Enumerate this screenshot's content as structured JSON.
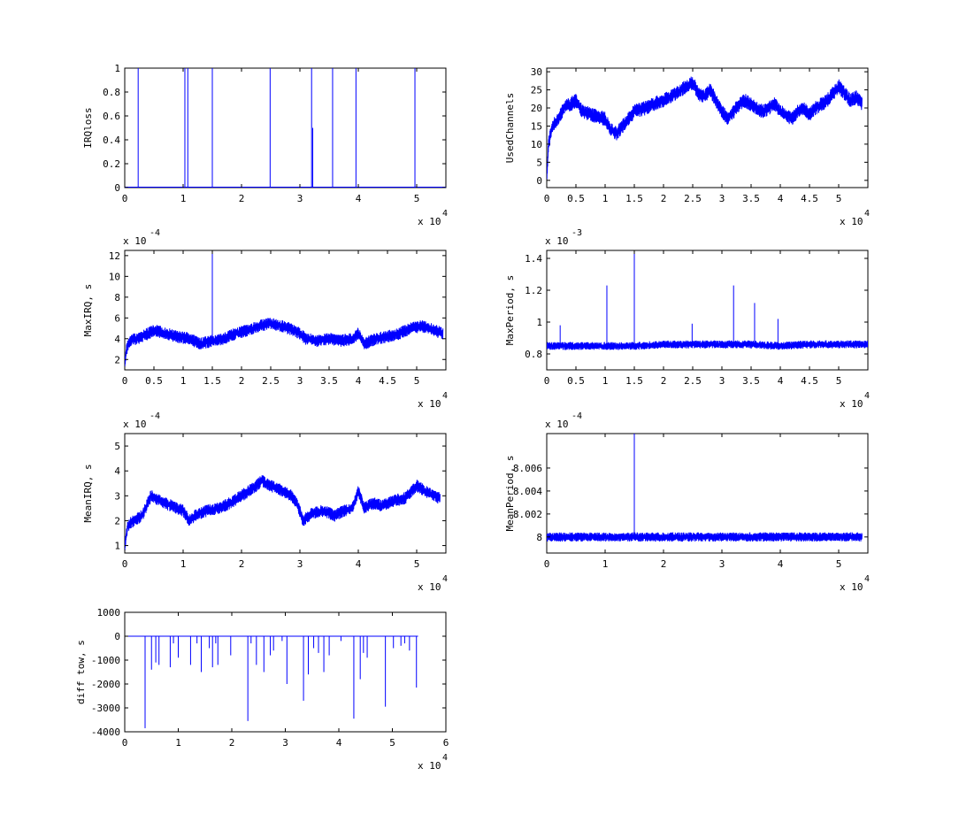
{
  "chart_data": [
    {
      "type": "line",
      "ylabel": "IRQloss",
      "xlim": [
        0,
        55000
      ],
      "ylim": [
        0,
        1
      ],
      "x_ticks": [
        0,
        10000,
        20000,
        30000,
        40000,
        50000
      ],
      "x_tick_labels": [
        "0",
        "1",
        "2",
        "3",
        "4",
        "5"
      ],
      "y_ticks": [
        0,
        0.2,
        0.4,
        0.6,
        0.8,
        1
      ],
      "y_tick_labels": [
        "0",
        "0.2",
        "0.4",
        "0.6",
        "0.8",
        "1"
      ],
      "x_multiplier": {
        "base": "x 10",
        "exp": "4"
      },
      "color": "#0000ff",
      "spikes": [
        {
          "x": 2300,
          "y": 1
        },
        {
          "x": 10300,
          "y": 1
        },
        {
          "x": 10800,
          "y": 1
        },
        {
          "x": 15000,
          "y": 1
        },
        {
          "x": 24900,
          "y": 1
        },
        {
          "x": 32000,
          "y": 1
        },
        {
          "x": 32200,
          "y": 0.5
        },
        {
          "x": 35600,
          "y": 1
        },
        {
          "x": 39600,
          "y": 1
        },
        {
          "x": 49700,
          "y": 1
        }
      ]
    },
    {
      "type": "line",
      "ylabel": "UsedChannels",
      "xlim": [
        0,
        55000
      ],
      "ylim": [
        -2,
        31
      ],
      "x_ticks": [
        0,
        5000,
        10000,
        15000,
        20000,
        25000,
        30000,
        35000,
        40000,
        45000,
        50000
      ],
      "x_tick_labels": [
        "0",
        "0.5",
        "1",
        "1.5",
        "2",
        "2.5",
        "3",
        "3.5",
        "4",
        "4.5",
        "5"
      ],
      "y_ticks": [
        0,
        5,
        10,
        15,
        20,
        25,
        30
      ],
      "y_tick_labels": [
        "0",
        "5",
        "10",
        "15",
        "20",
        "25",
        "30"
      ],
      "x_multiplier": {
        "base": "x 10",
        "exp": "4"
      },
      "color": "#0000ff",
      "x": [
        0,
        300,
        1000,
        2000,
        3000,
        4000,
        5000,
        6000,
        8000,
        10000,
        11000,
        12000,
        13000,
        15000,
        17000,
        18000,
        20000,
        21000,
        22000,
        23000,
        24000,
        25000,
        26000,
        27000,
        28000,
        29000,
        30000,
        31000,
        32000,
        33000,
        34000,
        35000,
        36000,
        37000,
        38000,
        39000,
        40000,
        41000,
        42000,
        43000,
        44000,
        45000,
        46000,
        47000,
        48000,
        49000,
        50000,
        51000,
        52000,
        53000,
        54000
      ],
      "y": [
        0,
        10,
        15,
        17,
        20,
        21,
        22,
        19,
        18,
        17,
        14,
        13,
        15,
        19,
        20,
        21,
        22,
        23,
        24,
        25,
        26,
        27,
        24,
        23,
        25,
        22,
        19,
        17,
        19,
        21,
        22,
        21,
        20,
        19,
        20,
        21,
        19,
        18,
        17,
        19,
        20,
        18,
        20,
        21,
        22,
        24,
        26,
        24,
        22,
        23,
        21
      ],
      "noise_band": 4
    },
    {
      "type": "line",
      "ylabel": "MaxIRQ, s",
      "xlim": [
        0,
        55000
      ],
      "ylim": [
        0.0001,
        0.00125
      ],
      "x_ticks": [
        0,
        5000,
        10000,
        15000,
        20000,
        25000,
        30000,
        35000,
        40000,
        45000,
        50000
      ],
      "x_tick_labels": [
        "0",
        "0.5",
        "1",
        "1.5",
        "2",
        "2.5",
        "3",
        "3.5",
        "4",
        "4.5",
        "5"
      ],
      "y_ticks": [
        0.0002,
        0.0004,
        0.0006,
        0.0008,
        0.001,
        0.0012
      ],
      "y_tick_labels": [
        "2",
        "4",
        "6",
        "8",
        "10",
        "12"
      ],
      "y_multiplier": {
        "base": "x 10",
        "exp": "-4"
      },
      "x_multiplier": {
        "base": "x 10",
        "exp": "4"
      },
      "color": "#0000ff",
      "x": [
        0,
        300,
        1000,
        3000,
        5000,
        7000,
        9000,
        11000,
        13000,
        15000,
        17000,
        19000,
        21000,
        23000,
        25000,
        27000,
        29000,
        30000,
        31000,
        33000,
        35000,
        37000,
        39000,
        40000,
        41000,
        43000,
        45000,
        47000,
        49000,
        51000,
        53000,
        54500
      ],
      "y": [
        0.00015,
        0.0003,
        0.00038,
        0.00042,
        0.00048,
        0.00045,
        0.00042,
        0.0004,
        0.00035,
        0.00038,
        0.0004,
        0.00045,
        0.00048,
        0.00052,
        0.00055,
        0.00052,
        0.00048,
        0.00045,
        0.0004,
        0.00038,
        0.0004,
        0.00038,
        0.0004,
        0.00045,
        0.00035,
        0.0004,
        0.00042,
        0.00045,
        0.0005,
        0.00052,
        0.00048,
        0.00045
      ],
      "noise_band": 0.00012,
      "spikes": [
        {
          "x": 15000,
          "y": 0.00125
        }
      ]
    },
    {
      "type": "line",
      "ylabel": "MaxPeriod, s",
      "xlim": [
        0,
        55000
      ],
      "ylim": [
        0.0007,
        0.00145
      ],
      "x_ticks": [
        0,
        5000,
        10000,
        15000,
        20000,
        25000,
        30000,
        35000,
        40000,
        45000,
        50000
      ],
      "x_tick_labels": [
        "0",
        "0.5",
        "1",
        "1.5",
        "2",
        "2.5",
        "3",
        "3.5",
        "4",
        "4.5",
        "5"
      ],
      "y_ticks": [
        0.0008,
        0.001,
        0.0012,
        0.0014
      ],
      "y_tick_labels": [
        "0.8",
        "1",
        "1.2",
        "1.4"
      ],
      "y_multiplier": {
        "base": "x 10",
        "exp": "-3"
      },
      "x_multiplier": {
        "base": "x 10",
        "exp": "4"
      },
      "color": "#0000ff",
      "x": [
        0,
        5000,
        10000,
        15000,
        20000,
        25000,
        30000,
        35000,
        40000,
        45000,
        50000,
        55000
      ],
      "y": [
        0.00085,
        0.00085,
        0.00085,
        0.00085,
        0.00086,
        0.00086,
        0.00086,
        0.00086,
        0.00085,
        0.00086,
        0.00086,
        0.00086
      ],
      "noise_band": 5e-05,
      "spikes": [
        {
          "x": 2300,
          "y": 0.00098
        },
        {
          "x": 10300,
          "y": 0.00123
        },
        {
          "x": 15000,
          "y": 0.00145
        },
        {
          "x": 24900,
          "y": 0.00099
        },
        {
          "x": 32000,
          "y": 0.00123
        },
        {
          "x": 35600,
          "y": 0.00112
        },
        {
          "x": 39600,
          "y": 0.00102
        }
      ]
    },
    {
      "type": "line",
      "ylabel": "MeanIRQ, s",
      "xlim": [
        0,
        55000
      ],
      "ylim": [
        7e-05,
        0.00055
      ],
      "x_ticks": [
        0,
        10000,
        20000,
        30000,
        40000,
        50000
      ],
      "x_tick_labels": [
        "0",
        "1",
        "2",
        "3",
        "4",
        "5"
      ],
      "y_ticks": [
        0.0001,
        0.0002,
        0.0003,
        0.0004,
        0.0005
      ],
      "y_tick_labels": [
        "1",
        "2",
        "3",
        "4",
        "5"
      ],
      "y_multiplier": {
        "base": "x 10",
        "exp": "-4"
      },
      "x_multiplier": {
        "base": "x 10",
        "exp": "4"
      },
      "color": "#0000ff",
      "x": [
        0,
        500,
        1500,
        3000,
        4500,
        6000,
        8000,
        10000,
        11000,
        12000,
        14000,
        16000,
        18000,
        20000,
        22000,
        23500,
        25000,
        27000,
        28500,
        29500,
        30500,
        32000,
        34000,
        36000,
        37500,
        39000,
        40000,
        41000,
        42500,
        44000,
        46000,
        48000,
        50000,
        52000,
        54000
      ],
      "y": [
        0.0001,
        0.00018,
        0.0002,
        0.00022,
        0.0003,
        0.00028,
        0.00026,
        0.00024,
        0.0002,
        0.00022,
        0.00024,
        0.00025,
        0.00027,
        0.0003,
        0.00033,
        0.00036,
        0.00034,
        0.00032,
        0.0003,
        0.00027,
        0.0002,
        0.00023,
        0.00024,
        0.00022,
        0.00024,
        0.00025,
        0.00032,
        0.00025,
        0.00027,
        0.00026,
        0.00028,
        0.00029,
        0.00034,
        0.00031,
        0.00029
      ],
      "noise_band": 5e-05
    },
    {
      "type": "line",
      "ylabel": "MeanPeriod, s",
      "xlim": [
        0,
        55000
      ],
      "ylim": [
        0.00079986,
        0.0008009
      ],
      "x_ticks": [
        0,
        10000,
        20000,
        30000,
        40000,
        50000
      ],
      "x_tick_labels": [
        "0",
        "1",
        "2",
        "3",
        "4",
        "5"
      ],
      "y_ticks": [
        0.0008,
        0.0008002,
        0.0008004,
        0.0008006
      ],
      "y_tick_labels": [
        "8",
        "8.002",
        "8.004",
        "8.006"
      ],
      "y_multiplier": {
        "base": "x 10",
        "exp": "-4"
      },
      "x_multiplier": {
        "base": "x 10",
        "exp": "4"
      },
      "color": "#0000ff",
      "x": [
        0,
        5000,
        10000,
        15000,
        20000,
        25000,
        30000,
        35000,
        40000,
        45000,
        50000,
        54000
      ],
      "y": [
        0.0008,
        0.0008,
        0.0008,
        0.0008,
        0.0008,
        0.0008,
        0.0008,
        0.0008,
        0.0008,
        0.0008,
        0.0008,
        0.0008
      ],
      "noise_band": 8e-08,
      "spikes": [
        {
          "x": 15000,
          "y": 0.0008009
        }
      ]
    },
    {
      "type": "line",
      "ylabel": "diff tow, s",
      "xlim": [
        0,
        60000
      ],
      "ylim": [
        -4000,
        1000
      ],
      "x_ticks": [
        0,
        10000,
        20000,
        30000,
        40000,
        50000,
        60000
      ],
      "x_tick_labels": [
        "0",
        "1",
        "2",
        "3",
        "4",
        "5",
        "6"
      ],
      "y_ticks": [
        -4000,
        -3000,
        -2000,
        -1000,
        0,
        1000
      ],
      "y_tick_labels": [
        "-4000",
        "-3000",
        "-2000",
        "-1000",
        "0",
        "1000"
      ],
      "x_multiplier": {
        "base": "x 10",
        "exp": "4"
      },
      "color": "#0000ff",
      "baseline": {
        "x_start": 0,
        "x_end": 54800,
        "y": 0
      },
      "drops": [
        {
          "x": 3800,
          "y": -3850
        },
        {
          "x": 5000,
          "y": -1400
        },
        {
          "x": 5800,
          "y": -1100
        },
        {
          "x": 6400,
          "y": -1200
        },
        {
          "x": 8500,
          "y": -1300
        },
        {
          "x": 9100,
          "y": -300
        },
        {
          "x": 10000,
          "y": -900
        },
        {
          "x": 12300,
          "y": -1200
        },
        {
          "x": 13500,
          "y": -300
        },
        {
          "x": 14300,
          "y": -1500
        },
        {
          "x": 15800,
          "y": -500
        },
        {
          "x": 16400,
          "y": -1300
        },
        {
          "x": 17000,
          "y": -300
        },
        {
          "x": 17400,
          "y": -1200
        },
        {
          "x": 19800,
          "y": -800
        },
        {
          "x": 23000,
          "y": -3550
        },
        {
          "x": 23600,
          "y": -300
        },
        {
          "x": 24600,
          "y": -1200
        },
        {
          "x": 26000,
          "y": -1500
        },
        {
          "x": 27200,
          "y": -800
        },
        {
          "x": 27800,
          "y": -600
        },
        {
          "x": 29400,
          "y": -200
        },
        {
          "x": 30300,
          "y": -2000
        },
        {
          "x": 33400,
          "y": -2700
        },
        {
          "x": 34300,
          "y": -1600
        },
        {
          "x": 35300,
          "y": -500
        },
        {
          "x": 36200,
          "y": -700
        },
        {
          "x": 37200,
          "y": -1500
        },
        {
          "x": 38200,
          "y": -800
        },
        {
          "x": 40400,
          "y": -200
        },
        {
          "x": 42800,
          "y": -3450
        },
        {
          "x": 44000,
          "y": -1800
        },
        {
          "x": 44600,
          "y": -700
        },
        {
          "x": 45300,
          "y": -900
        },
        {
          "x": 48700,
          "y": -2950
        },
        {
          "x": 50200,
          "y": -500
        },
        {
          "x": 51600,
          "y": -400
        },
        {
          "x": 52300,
          "y": -300
        },
        {
          "x": 53200,
          "y": -600
        },
        {
          "x": 54500,
          "y": -2150
        }
      ]
    }
  ]
}
